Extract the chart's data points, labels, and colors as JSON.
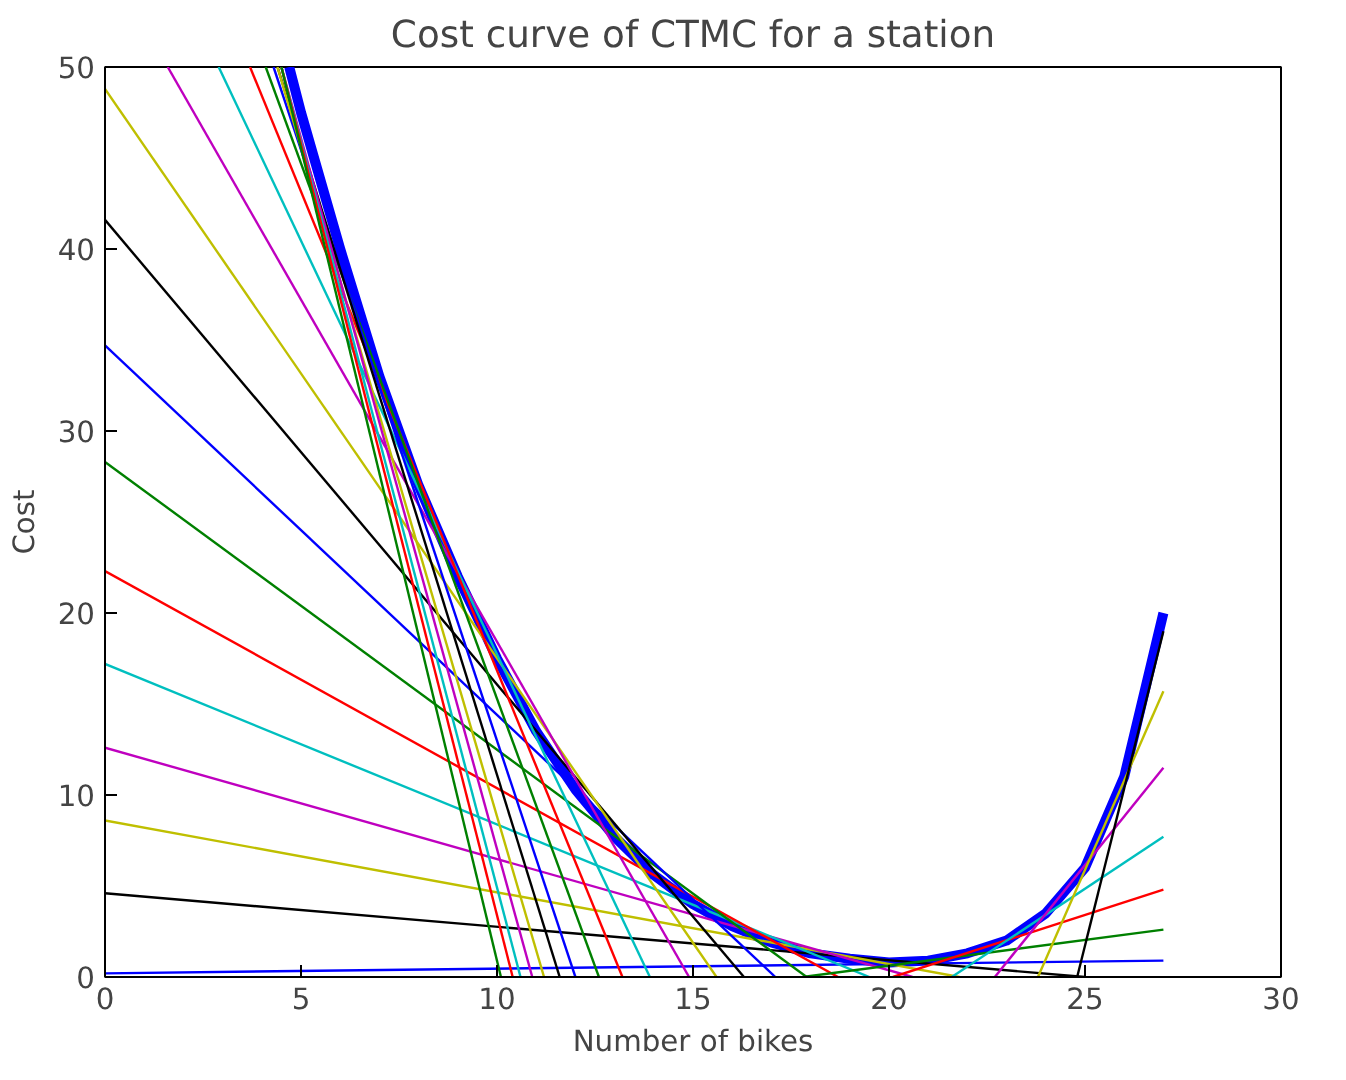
{
  "chart_data": {
    "type": "line",
    "title": "Cost curve of CTMC for a station",
    "xlabel": "Number of bikes",
    "ylabel": "Cost",
    "xlim": [
      0,
      30
    ],
    "ylim": [
      0,
      50
    ],
    "xticks": [
      0,
      5,
      10,
      15,
      20,
      25,
      30
    ],
    "yticks": [
      0,
      10,
      20,
      30,
      40,
      50
    ],
    "grid": false,
    "series": [
      {
        "color": "#0000ff",
        "x": [
          4.7,
          5,
          6,
          7,
          8,
          9,
          10,
          11,
          12,
          13,
          14,
          15,
          16,
          17,
          18,
          19,
          20,
          21,
          22,
          23,
          24,
          25,
          26,
          27
        ],
        "values": [
          50,
          47.5,
          40,
          33,
          27,
          22,
          17.5,
          13.5,
          10.3,
          7.7,
          5.6,
          4,
          2.8,
          1.9,
          1.3,
          1.0,
          0.8,
          0.9,
          1.3,
          2.0,
          3.5,
          6,
          11,
          20
        ]
      },
      {
        "color": "#0000ff",
        "x": [
          0,
          27
        ],
        "values": [
          0.2,
          0.9
        ]
      },
      {
        "color": "#000000",
        "x": [
          0,
          25
        ],
        "values": [
          4.6,
          0
        ]
      },
      {
        "color": "#bfbf00",
        "x": [
          0,
          21.8
        ],
        "values": [
          8.6,
          0
        ]
      },
      {
        "color": "#bf00bf",
        "x": [
          0,
          20.6
        ],
        "values": [
          12.6,
          0
        ]
      },
      {
        "color": "#00bfbf",
        "x": [
          0,
          19.5
        ],
        "values": [
          17.2,
          0
        ]
      },
      {
        "color": "#ff0000",
        "x": [
          0,
          18.7
        ],
        "values": [
          22.3,
          0
        ]
      },
      {
        "color": "#008000",
        "x": [
          0,
          17.9
        ],
        "values": [
          28.3,
          0
        ]
      },
      {
        "color": "#0000ff",
        "x": [
          0,
          17.1
        ],
        "values": [
          34.7,
          0
        ]
      },
      {
        "color": "#000000",
        "x": [
          0,
          16.3
        ],
        "values": [
          41.6,
          0
        ]
      },
      {
        "color": "#bfbf00",
        "x": [
          0,
          15.6
        ],
        "values": [
          48.8,
          0
        ]
      },
      {
        "color": "#bf00bf",
        "x": [
          1.6,
          14.9
        ],
        "values": [
          50,
          0
        ]
      },
      {
        "color": "#00bfbf",
        "x": [
          2.9,
          13.9
        ],
        "values": [
          50,
          0
        ]
      },
      {
        "color": "#ff0000",
        "x": [
          3.7,
          13.2
        ],
        "values": [
          50,
          0
        ]
      },
      {
        "color": "#008000",
        "x": [
          4.1,
          12.6
        ],
        "values": [
          50,
          0
        ]
      },
      {
        "color": "#0000ff",
        "x": [
          4.3,
          12.0
        ],
        "values": [
          50,
          0
        ]
      },
      {
        "color": "#000000",
        "x": [
          4.4,
          11.6
        ],
        "values": [
          50,
          0
        ]
      },
      {
        "color": "#bfbf00",
        "x": [
          4.4,
          11.2
        ],
        "values": [
          50,
          0
        ]
      },
      {
        "color": "#bf00bf",
        "x": [
          4.5,
          10.9
        ],
        "values": [
          50,
          0
        ]
      },
      {
        "color": "#00bfbf",
        "x": [
          4.5,
          10.6
        ],
        "values": [
          50,
          0
        ]
      },
      {
        "color": "#ff0000",
        "x": [
          4.5,
          10.4
        ],
        "values": [
          50,
          0
        ]
      },
      {
        "color": "#008000",
        "x": [
          4.5,
          10.1
        ],
        "values": [
          50,
          0
        ]
      },
      {
        "color": "#008000",
        "x": [
          17.8,
          27
        ],
        "values": [
          0,
          2.6
        ]
      },
      {
        "color": "#ff0000",
        "x": [
          20.1,
          27
        ],
        "values": [
          0,
          4.8
        ]
      },
      {
        "color": "#00bfbf",
        "x": [
          21.6,
          27
        ],
        "values": [
          0,
          7.7
        ]
      },
      {
        "color": "#bf00bf",
        "x": [
          22.7,
          27
        ],
        "values": [
          0,
          11.5
        ]
      },
      {
        "color": "#bfbf00",
        "x": [
          23.8,
          27
        ],
        "values": [
          0,
          15.7
        ]
      },
      {
        "color": "#000000",
        "x": [
          24.8,
          27
        ],
        "values": [
          0,
          19
        ]
      }
    ]
  }
}
